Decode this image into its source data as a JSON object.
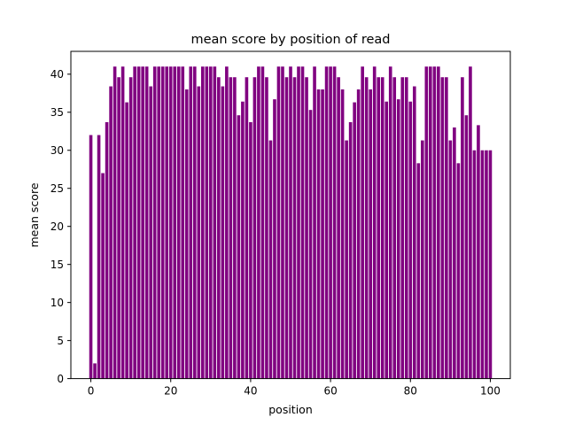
{
  "chart_data": {
    "type": "bar",
    "title": "mean score by position of read",
    "xlabel": "position",
    "ylabel": "mean score",
    "xlim": [
      -5,
      105
    ],
    "ylim": [
      0,
      43
    ],
    "grid": false,
    "legend": "none",
    "bar_color": "#800080",
    "xticks": [
      0,
      20,
      40,
      60,
      80,
      100
    ],
    "yticks": [
      0,
      5,
      10,
      15,
      20,
      25,
      30,
      35,
      40
    ],
    "x": [
      0,
      1,
      2,
      3,
      4,
      5,
      6,
      7,
      8,
      9,
      10,
      11,
      12,
      13,
      14,
      15,
      16,
      17,
      18,
      19,
      20,
      21,
      22,
      23,
      24,
      25,
      26,
      27,
      28,
      29,
      30,
      31,
      32,
      33,
      34,
      35,
      36,
      37,
      38,
      39,
      40,
      41,
      42,
      43,
      44,
      45,
      46,
      47,
      48,
      49,
      50,
      51,
      52,
      53,
      54,
      55,
      56,
      57,
      58,
      59,
      60,
      61,
      62,
      63,
      64,
      65,
      66,
      67,
      68,
      69,
      70,
      71,
      72,
      73,
      74,
      75,
      76,
      77,
      78,
      79,
      80,
      81,
      82,
      83,
      84,
      85,
      86,
      87,
      88,
      89,
      90,
      91,
      92,
      93,
      94,
      95,
      96,
      97,
      98,
      99,
      100
    ],
    "values": [
      32,
      2,
      32,
      27,
      33.7,
      38.4,
      41,
      39.6,
      41,
      36.3,
      39.6,
      41,
      41,
      41,
      41,
      38.4,
      41,
      41,
      41,
      41,
      41,
      41,
      41,
      41,
      38,
      41,
      41,
      38.4,
      41,
      41,
      41,
      41,
      39.6,
      38.4,
      41,
      39.6,
      39.6,
      34.6,
      36.4,
      39.6,
      33.7,
      39.6,
      41,
      41,
      39.6,
      31.3,
      36.7,
      41,
      41,
      39.6,
      41,
      39.6,
      41,
      41,
      39.6,
      35.3,
      41,
      38,
      38,
      41,
      41,
      41,
      39.6,
      38,
      31.3,
      33.7,
      36.3,
      38,
      41,
      39.6,
      38,
      41,
      39.6,
      39.6,
      36.4,
      41,
      39.6,
      36.7,
      39.6,
      39.6,
      36.4,
      38.4,
      28.3,
      31.3,
      41,
      41,
      41,
      41,
      39.6,
      39.6,
      31.3,
      33,
      28.3,
      39.6,
      34.6,
      41,
      30,
      33.3,
      30,
      30,
      30
    ]
  }
}
